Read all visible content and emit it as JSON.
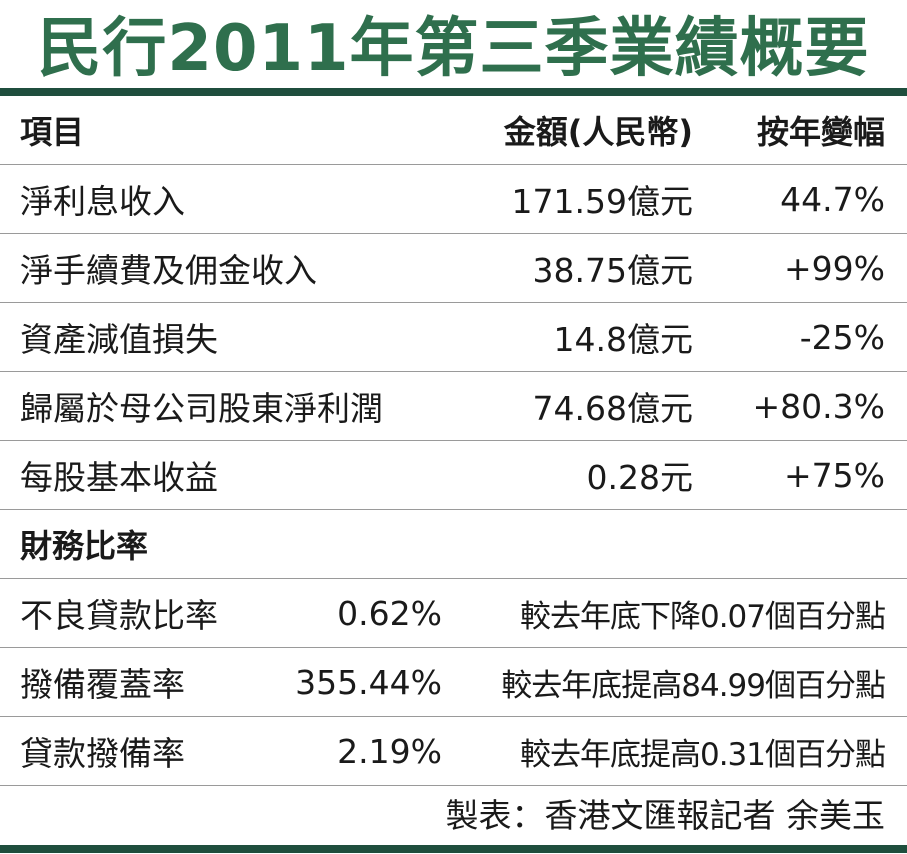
{
  "title": "民行2011年第三季業績概要",
  "header": {
    "item": "項目",
    "amount": "金額(人民幣)",
    "yoy": "按年變幅"
  },
  "results": [
    {
      "label": "淨利息收入",
      "amount": "171.59億元",
      "yoy": "44.7%"
    },
    {
      "label": "淨手續費及佣金收入",
      "amount": "38.75億元",
      "yoy": "+99%"
    },
    {
      "label": "資產減值損失",
      "amount": "14.8億元",
      "yoy": "-25%"
    },
    {
      "label": "歸屬於母公司股東淨利潤",
      "amount": "74.68億元",
      "yoy": "+80.3%"
    },
    {
      "label": "每股基本收益",
      "amount": "0.28元",
      "yoy": "+75%"
    }
  ],
  "ratios_section": "財務比率",
  "ratios": [
    {
      "label": "不良貸款比率",
      "value": "0.62%",
      "change": "較去年底下降0.07個百分點"
    },
    {
      "label": "撥備覆蓋率",
      "value": "355.44%",
      "change": "較去年底提高84.99個百分點"
    },
    {
      "label": "貸款撥備率",
      "value": "2.19%",
      "change": "較去年底提高0.31個百分點"
    }
  ],
  "footer": "製表：香港文匯報記者 余美玉"
}
